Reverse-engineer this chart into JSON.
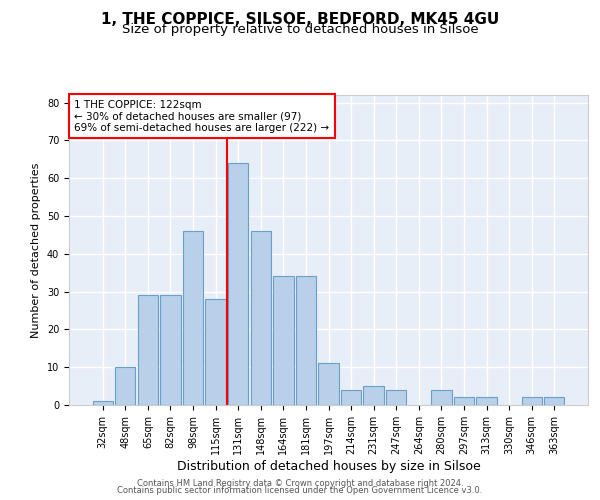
{
  "title": "1, THE COPPICE, SILSOE, BEDFORD, MK45 4GU",
  "subtitle": "Size of property relative to detached houses in Silsoe",
  "xlabel": "Distribution of detached houses by size in Silsoe",
  "ylabel": "Number of detached properties",
  "categories": [
    "32sqm",
    "48sqm",
    "65sqm",
    "82sqm",
    "98sqm",
    "115sqm",
    "131sqm",
    "148sqm",
    "164sqm",
    "181sqm",
    "197sqm",
    "214sqm",
    "231sqm",
    "247sqm",
    "264sqm",
    "280sqm",
    "297sqm",
    "313sqm",
    "330sqm",
    "346sqm",
    "363sqm"
  ],
  "values": [
    1,
    10,
    29,
    29,
    46,
    28,
    64,
    46,
    34,
    34,
    11,
    4,
    5,
    4,
    0,
    4,
    2,
    2,
    0,
    2,
    2
  ],
  "bar_color": "#b8d0ea",
  "bar_edge_color": "#6a9fc8",
  "vline_x_index": 6,
  "vline_color": "red",
  "annotation_text": "1 THE COPPICE: 122sqm\n← 30% of detached houses are smaller (97)\n69% of semi-detached houses are larger (222) →",
  "annotation_box_color": "white",
  "annotation_box_edge_color": "red",
  "ylim": [
    0,
    82
  ],
  "yticks": [
    0,
    10,
    20,
    30,
    40,
    50,
    60,
    70,
    80
  ],
  "footer1": "Contains HM Land Registry data © Crown copyright and database right 2024.",
  "footer2": "Contains public sector information licensed under the Open Government Licence v3.0.",
  "background_color": "#e8eef8",
  "grid_color": "white",
  "title_fontsize": 11,
  "subtitle_fontsize": 9.5,
  "xlabel_fontsize": 9,
  "ylabel_fontsize": 8,
  "tick_fontsize": 7,
  "annotation_fontsize": 7.5,
  "footer_fontsize": 6
}
